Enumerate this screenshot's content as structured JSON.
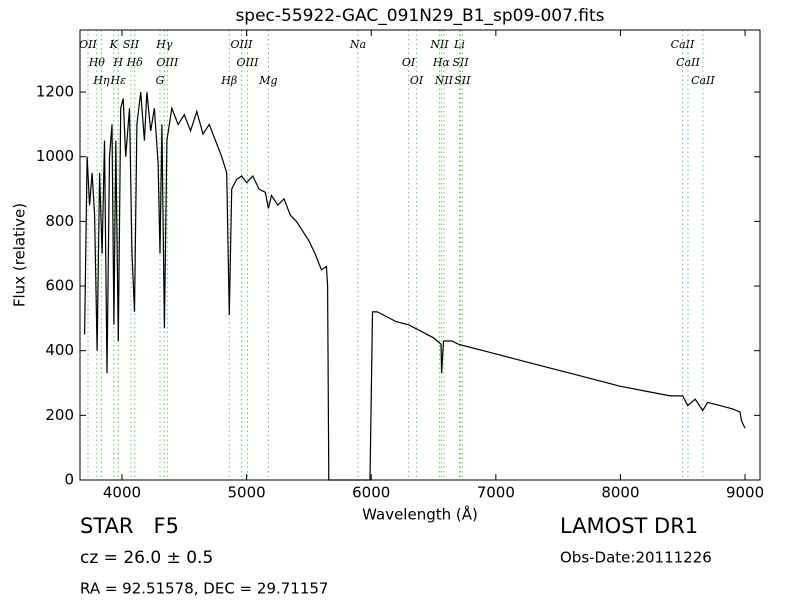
{
  "chart_data": {
    "type": "line",
    "title": "spec-55922-GAC_091N29_B1_sp09-007.fits",
    "x_label": "Wavelength (Å)",
    "y_label": "Flux (relative)",
    "xlim": [
      3663,
      9120
    ],
    "ylim": [
      0,
      1392
    ],
    "xticks": [
      4000,
      5000,
      6000,
      7000,
      8000,
      9000
    ],
    "yticks": [
      0,
      200,
      400,
      600,
      800,
      1000,
      1200
    ],
    "grid": false,
    "x": [
      3700,
      3720,
      3740,
      3760,
      3780,
      3800,
      3820,
      3840,
      3860,
      3880,
      3900,
      3920,
      3935,
      3950,
      3970,
      3990,
      4010,
      4030,
      4060,
      4080,
      4100,
      4120,
      4150,
      4180,
      4200,
      4230,
      4260,
      4290,
      4305,
      4320,
      4340,
      4360,
      4400,
      4450,
      4500,
      4550,
      4600,
      4650,
      4700,
      4750,
      4800,
      4840,
      4861,
      4880,
      4920,
      4960,
      5000,
      5050,
      5100,
      5150,
      5175,
      5200,
      5250,
      5300,
      5350,
      5400,
      5450,
      5500,
      5550,
      5600,
      5640,
      5650,
      5660,
      5990,
      6010,
      6050,
      6100,
      6200,
      6300,
      6400,
      6500,
      6560,
      6565,
      6580,
      6650,
      6700,
      6800,
      6900,
      7000,
      7200,
      7400,
      7600,
      7800,
      8000,
      8200,
      8400,
      8500,
      8540,
      8600,
      8660,
      8700,
      8800,
      8900,
      8960,
      8970,
      9000
    ],
    "series": [
      {
        "name": "Flux",
        "color": "#000000",
        "values": [
          450,
          1000,
          850,
          950,
          820,
          400,
          950,
          700,
          1050,
          330,
          1000,
          1100,
          480,
          1050,
          430,
          1150,
          1180,
          1000,
          1150,
          700,
          520,
          1100,
          1200,
          1050,
          1200,
          1080,
          1150,
          980,
          700,
          1100,
          470,
          1050,
          1150,
          1100,
          1130,
          1080,
          1140,
          1070,
          1100,
          1050,
          1000,
          950,
          510,
          900,
          930,
          940,
          920,
          940,
          900,
          890,
          840,
          880,
          850,
          870,
          820,
          800,
          770,
          740,
          700,
          650,
          660,
          600,
          0,
          0,
          520,
          520,
          510,
          490,
          480,
          460,
          440,
          420,
          330,
          430,
          430,
          420,
          410,
          400,
          390,
          370,
          350,
          330,
          310,
          290,
          275,
          260,
          260,
          230,
          250,
          215,
          240,
          230,
          220,
          210,
          185,
          160
        ]
      }
    ],
    "line_color": "#66cc66",
    "lines": [
      {
        "label": "OII",
        "x": 3727
      },
      {
        "label": "Hθ",
        "x": 3798
      },
      {
        "label": "Hη",
        "x": 3835
      },
      {
        "label": "K",
        "x": 3934
      },
      {
        "label": "H",
        "x": 3969
      },
      {
        "label": "Hε",
        "x": 3970
      },
      {
        "label": "SII",
        "x": 4072
      },
      {
        "label": "Hδ",
        "x": 4102
      },
      {
        "label": "G",
        "x": 4305
      },
      {
        "label": "Hγ",
        "x": 4340
      },
      {
        "label": "OIII",
        "x": 4364
      },
      {
        "label": "Hβ",
        "x": 4861
      },
      {
        "label": "OIII",
        "x": 4959
      },
      {
        "label": "OIII",
        "x": 5007
      },
      {
        "label": "Mg",
        "x": 5175
      },
      {
        "label": "Na",
        "x": 5894
      },
      {
        "label": "OI",
        "x": 6300
      },
      {
        "label": "OI",
        "x": 6364
      },
      {
        "label": "NII",
        "x": 6548
      },
      {
        "label": "Hα",
        "x": 6563
      },
      {
        "label": "NII",
        "x": 6583
      },
      {
        "label": "Li",
        "x": 6708
      },
      {
        "label": "SII",
        "x": 6716
      },
      {
        "label": "SII",
        "x": 6731
      },
      {
        "label": "CaII",
        "x": 8498
      },
      {
        "label": "CaII",
        "x": 8542
      },
      {
        "label": "CaII",
        "x": 8662
      }
    ],
    "class": "STAR   F5",
    "redshift": "cz = 26.0 ± 0.5",
    "coords": "RA = 92.51578, DEC = 29.71157",
    "survey": "LAMOST DR1",
    "obs_date": "Obs-Date:20111226"
  }
}
